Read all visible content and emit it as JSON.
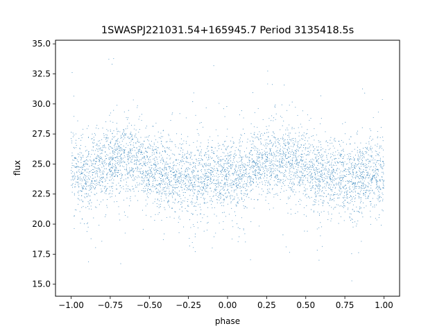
{
  "chart_data": {
    "type": "scatter",
    "title": "1SWASPJ221031.54+165945.7 Period 3135418.5s",
    "xlabel": "phase",
    "ylabel": "flux",
    "xlim": [
      -1.1,
      1.1
    ],
    "ylim": [
      14.0,
      35.3
    ],
    "x_ticks": [
      -1.0,
      -0.75,
      -0.5,
      -0.25,
      0.0,
      0.25,
      0.5,
      0.75,
      1.0
    ],
    "x_tick_labels": [
      "−1.00",
      "−0.75",
      "−0.50",
      "−0.25",
      "0.00",
      "0.25",
      "0.50",
      "0.75",
      "1.00"
    ],
    "y_ticks": [
      15.0,
      17.5,
      20.0,
      22.5,
      25.0,
      27.5,
      30.0,
      32.5,
      35.0
    ],
    "y_tick_labels": [
      "15.0",
      "17.5",
      "20.0",
      "22.5",
      "25.0",
      "27.5",
      "30.0",
      "32.5",
      "35.0"
    ],
    "grid": false,
    "marker_color": "#1f77b4",
    "phase_range": [
      -1.0,
      1.0
    ],
    "flux_profile": [
      {
        "phase": 0.0,
        "flux": 24.3
      },
      {
        "phase": 0.1,
        "flux": 23.8
      },
      {
        "phase": 0.2,
        "flux": 25.0
      },
      {
        "phase": 0.3,
        "flux": 25.5
      },
      {
        "phase": 0.4,
        "flux": 25.5
      },
      {
        "phase": 0.5,
        "flux": 24.6
      },
      {
        "phase": 0.6,
        "flux": 24.0
      },
      {
        "phase": 0.7,
        "flux": 23.8
      },
      {
        "phase": 0.8,
        "flux": 23.7
      },
      {
        "phase": 0.9,
        "flux": 24.2
      },
      {
        "phase": 1.0,
        "flux": 24.3
      }
    ],
    "flux_scatter": 1.5,
    "flux_min": 15.0,
    "flux_max": 34.4
  }
}
